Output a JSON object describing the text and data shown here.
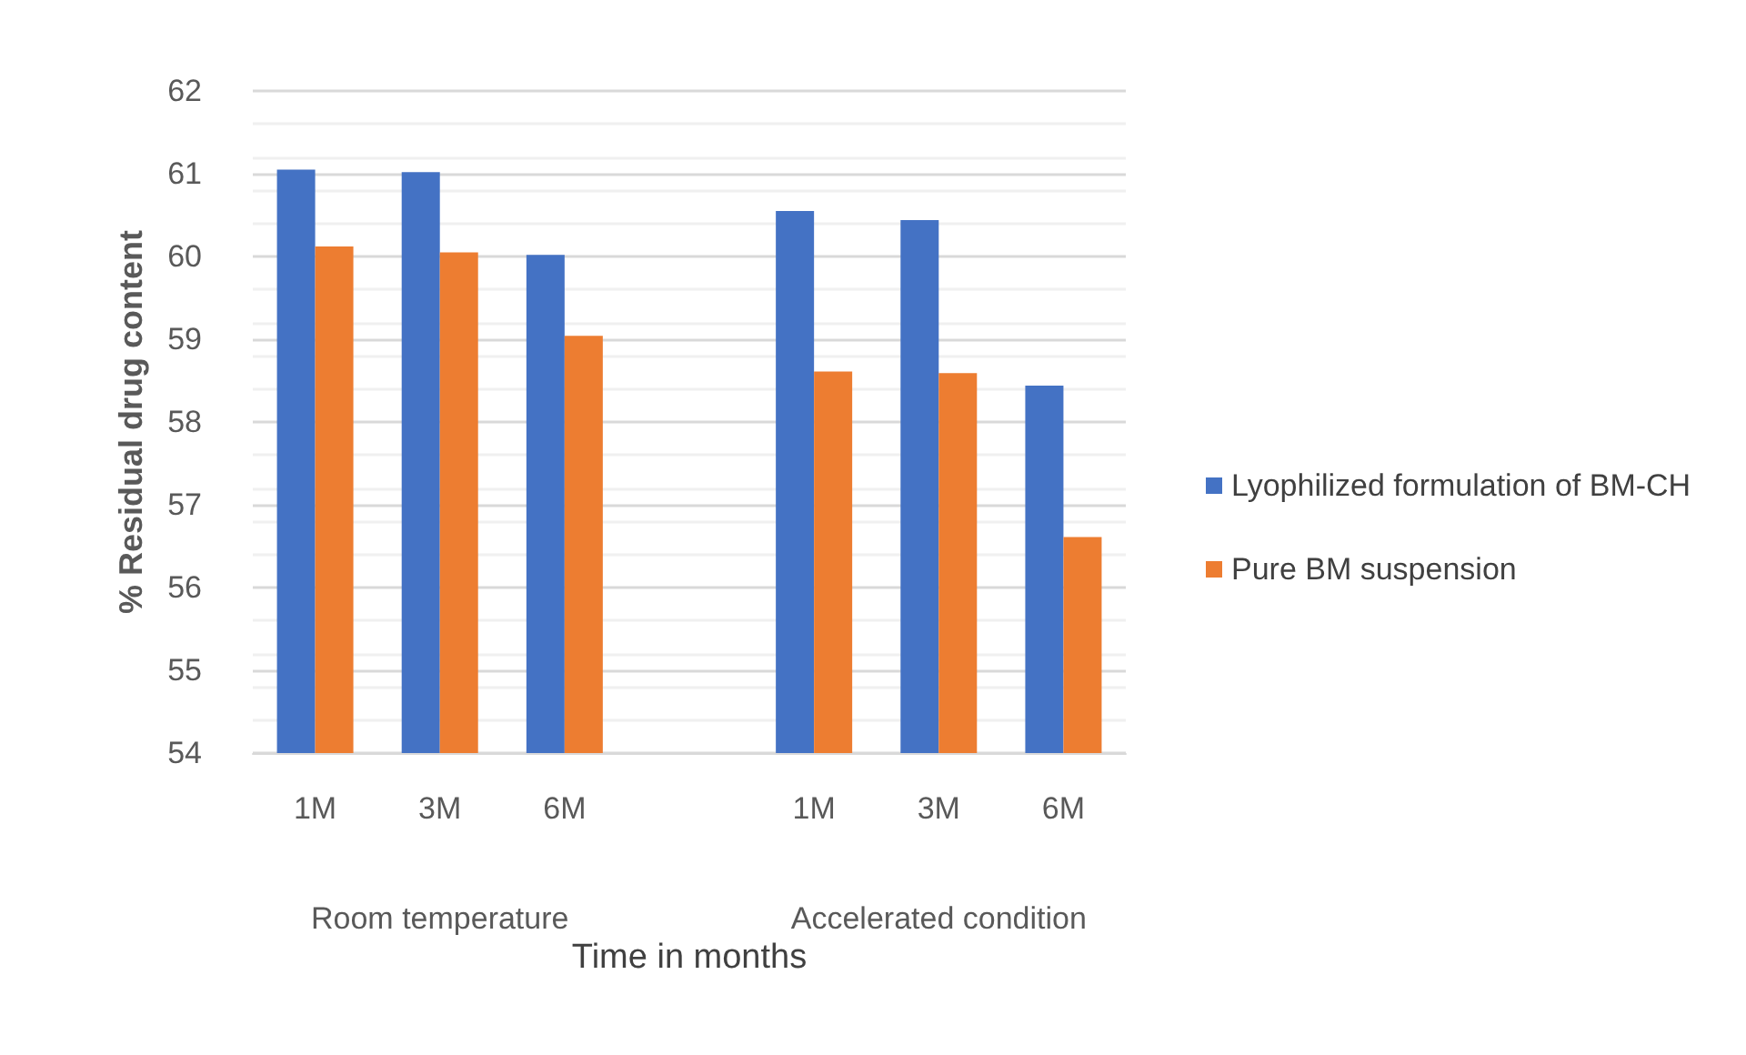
{
  "chart_data": {
    "type": "bar",
    "xlabel": "Time in months",
    "ylabel": "% Residual drug content",
    "categories": [
      "1M",
      "3M",
      "6M",
      null,
      "1M",
      "3M",
      "6M"
    ],
    "series": [
      {
        "name": "Lyophilized formulation of BM-CH",
        "color": "#4472c4",
        "values": [
          61.05,
          61.02,
          60.02,
          null,
          60.55,
          60.44,
          58.44
        ]
      },
      {
        "name": "Pure BM suspension",
        "color": "#ed7d31",
        "values": [
          60.12,
          60.05,
          59.04,
          null,
          58.61,
          58.59,
          56.61
        ]
      }
    ],
    "annotations": [
      "Room temperature",
      "Accelerated condition"
    ],
    "ylim": [
      54,
      62
    ],
    "yticks": [
      54,
      55,
      56,
      57,
      58,
      59,
      60,
      61,
      62
    ],
    "grid": "y",
    "legend": "right"
  }
}
